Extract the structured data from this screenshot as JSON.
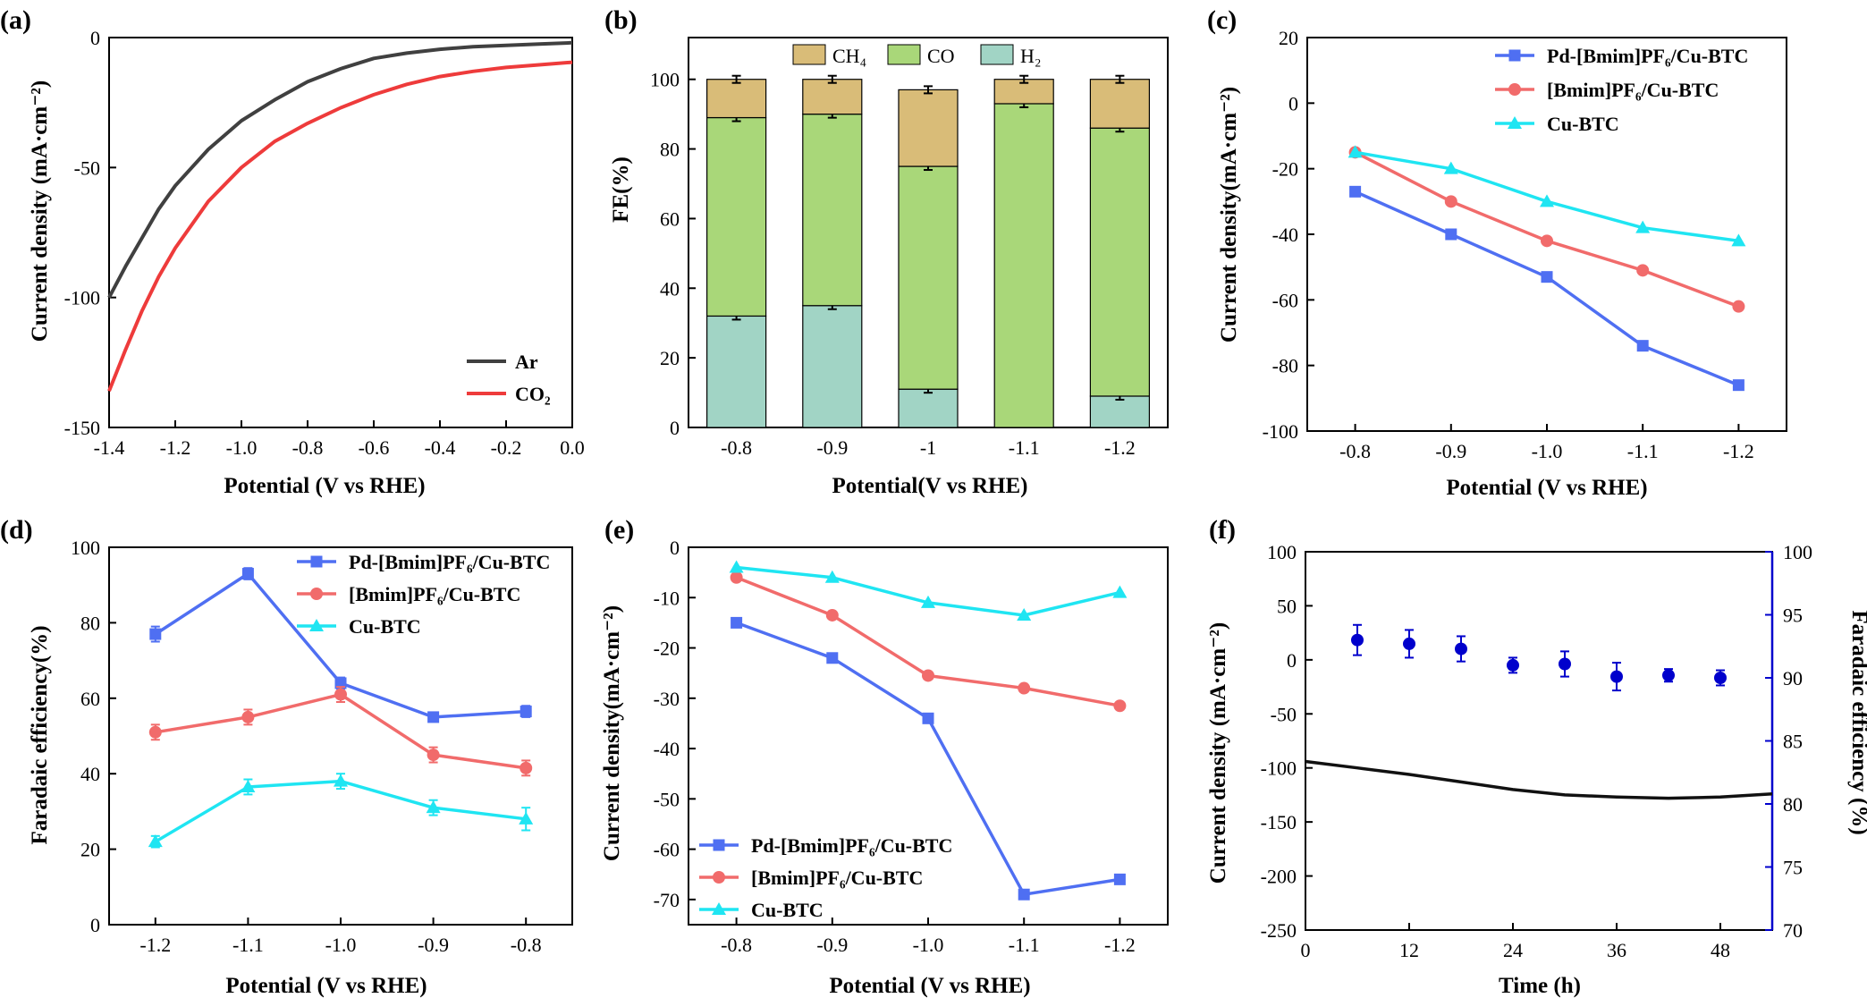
{
  "colors": {
    "axis": "#000000",
    "ar": "#404040",
    "co2": "#ee3b3b",
    "ch4": "#d9bc78",
    "co": "#a9d779",
    "h2": "#a1d4c5",
    "pd": "#4f6ff2",
    "bmim": "#f16b6b",
    "cubtc": "#1fe5f2",
    "trend_red": "#ef3434",
    "fe_blue": "#0000cc"
  },
  "chart_data": [
    {
      "panel": "(a)",
      "type": "line",
      "xlabel": "Potential (V vs RHE)",
      "ylabel": "Current density (mA·cm⁻²)",
      "xlim": [
        -1.4,
        0.0
      ],
      "ylim": [
        -150,
        0
      ],
      "xticks": [
        "-1.4",
        "-1.2",
        "-1.0",
        "-0.8",
        "-0.6",
        "-0.4",
        "-0.2",
        "0.0"
      ],
      "yticks": [
        "0",
        "-50",
        "-100",
        "-150"
      ],
      "legend": {
        "position": "bottom-right",
        "entries": [
          "Ar",
          "CO₂"
        ]
      },
      "series": [
        {
          "name": "Ar",
          "x": [
            -1.4,
            -1.35,
            -1.3,
            -1.25,
            -1.2,
            -1.1,
            -1.0,
            -0.9,
            -0.8,
            -0.7,
            -0.6,
            -0.5,
            -0.4,
            -0.3,
            -0.2,
            -0.1,
            0.0
          ],
          "y": [
            -100,
            -88,
            -77,
            -66,
            -57,
            -43,
            -32,
            -24,
            -17,
            -12,
            -8,
            -6,
            -4.5,
            -3.5,
            -3,
            -2.5,
            -2
          ]
        },
        {
          "name": "CO₂",
          "x": [
            -1.4,
            -1.35,
            -1.3,
            -1.25,
            -1.2,
            -1.1,
            -1.0,
            -0.9,
            -0.8,
            -0.7,
            -0.6,
            -0.5,
            -0.4,
            -0.3,
            -0.2,
            -0.1,
            0.0
          ],
          "y": [
            -136,
            -120,
            -105,
            -92,
            -81,
            -63,
            -50,
            -40,
            -33,
            -27,
            -22,
            -18,
            -15,
            -13,
            -11.5,
            -10.5,
            -9.5
          ]
        }
      ]
    },
    {
      "panel": "(b)",
      "type": "bar",
      "stacked": true,
      "xlabel": "Potential(V vs RHE)",
      "ylabel": "FE(%)",
      "ylim": [
        0,
        112
      ],
      "yticks": [
        "0",
        "20",
        "40",
        "60",
        "80",
        "100"
      ],
      "categories": [
        "-0.8",
        "-0.9",
        "-1",
        "-1.1",
        "-1.2"
      ],
      "legend": {
        "position": "top",
        "entries": [
          "CH₄",
          "CO",
          "H₂"
        ]
      },
      "series": [
        {
          "name": "H₂",
          "values": [
            32,
            35,
            11,
            0,
            9
          ]
        },
        {
          "name": "CO",
          "values": [
            57,
            55,
            64,
            93,
            77
          ]
        },
        {
          "name": "CH₄",
          "values": [
            11,
            10,
            22,
            7,
            14
          ]
        }
      ]
    },
    {
      "panel": "(c)",
      "type": "line",
      "xlabel": "Potential (V vs RHE)",
      "ylabel": "Current density(mA·cm⁻²)",
      "ylim": [
        -100,
        20
      ],
      "categories": [
        "-0.8",
        "-0.9",
        "-1.0",
        "-1.1",
        "-1.2"
      ],
      "yticks": [
        "20",
        "0",
        "-20",
        "-40",
        "-60",
        "-80",
        "-100"
      ],
      "legend": {
        "position": "top-right",
        "entries": [
          "Pd-[Bmim]PF₆/Cu-BTC",
          "[Bmim]PF₆/Cu-BTC",
          "Cu-BTC"
        ]
      },
      "series": [
        {
          "name": "Pd-[Bmim]PF₆/Cu-BTC",
          "values": [
            -27,
            -40,
            -53,
            -74,
            -86
          ]
        },
        {
          "name": "[Bmim]PF₆/Cu-BTC",
          "values": [
            -15,
            -30,
            -42,
            -51,
            -62
          ]
        },
        {
          "name": "Cu-BTC",
          "values": [
            -15,
            -20,
            -30,
            -38,
            -42
          ]
        }
      ]
    },
    {
      "panel": "(d)",
      "type": "line",
      "xlabel": "Potential (V vs RHE)",
      "ylabel": "Faradaic efficiency(%)",
      "ylim": [
        0,
        100
      ],
      "categories": [
        "-1.2",
        "-1.1",
        "-1.0",
        "-0.9",
        "-0.8"
      ],
      "yticks": [
        "0",
        "20",
        "40",
        "60",
        "80",
        "100"
      ],
      "legend": {
        "position": "top-right",
        "entries": [
          "Pd-[Bmim]PF₆/Cu-BTC",
          "[Bmim]PF₆/Cu-BTC",
          "Cu-BTC"
        ]
      },
      "series": [
        {
          "name": "Pd-[Bmim]PF₆/Cu-BTC",
          "values": [
            77,
            93,
            64,
            55,
            56.5
          ],
          "errors": [
            2,
            1.5,
            1.5,
            1,
            1.5
          ]
        },
        {
          "name": "[Bmim]PF₆/Cu-BTC",
          "values": [
            51,
            55,
            61,
            45,
            41.5
          ],
          "errors": [
            2,
            2,
            2,
            2,
            2
          ]
        },
        {
          "name": "Cu-BTC",
          "values": [
            22,
            36.5,
            38,
            31,
            28
          ],
          "errors": [
            1.5,
            2,
            2,
            2,
            3
          ]
        }
      ]
    },
    {
      "panel": "(e)",
      "type": "line",
      "xlabel": "Potential (V vs RHE)",
      "ylabel": "Current density(mA·cm⁻²)",
      "ylim": [
        -75,
        0
      ],
      "categories": [
        "-0.8",
        "-0.9",
        "-1.0",
        "-1.1",
        "-1.2"
      ],
      "yticks": [
        "0",
        "-10",
        "-20",
        "-30",
        "-40",
        "-50",
        "-60",
        "-70"
      ],
      "legend": {
        "position": "bottom-left",
        "entries": [
          "Pd-[Bmim]PF₆/Cu-BTC",
          "[Bmim]PF₆/Cu-BTC",
          "Cu-BTC"
        ]
      },
      "series": [
        {
          "name": "Pd-[Bmim]PF₆/Cu-BTC",
          "values": [
            -15,
            -22,
            -34,
            -69,
            -66
          ]
        },
        {
          "name": "[Bmim]PF₆/Cu-BTC",
          "values": [
            -6,
            -13.5,
            -25.5,
            -28,
            -31.5
          ]
        },
        {
          "name": "Cu-BTC",
          "values": [
            -4,
            -6,
            -11,
            -13.5,
            -9
          ]
        }
      ]
    },
    {
      "panel": "(f)",
      "type": "line",
      "xlabel": "Time (h)",
      "ylabel": "Current density (mA·cm⁻²)",
      "ylabel_right": "Faradaic efficiency (%)",
      "xlim": [
        0,
        54
      ],
      "ylim": [
        -250,
        100
      ],
      "ylim_right": [
        70,
        100
      ],
      "xticks": [
        "0",
        "12",
        "24",
        "36",
        "48"
      ],
      "yticks": [
        "100",
        "50",
        "0",
        "-50",
        "-100",
        "-150",
        "-200",
        "-250"
      ],
      "yticks_right": [
        "100",
        "95",
        "90",
        "85",
        "80",
        "75",
        "70"
      ],
      "current": {
        "x": [
          0,
          6,
          12,
          18,
          24,
          30,
          36,
          42,
          48,
          54
        ],
        "y": [
          -94,
          -100,
          -106,
          -113,
          -120,
          -125,
          -127,
          -128,
          -127,
          -124
        ]
      },
      "faradaic_efficiency": {
        "x": [
          6,
          12,
          18,
          24,
          30,
          36,
          42,
          48
        ],
        "y": [
          93,
          92.7,
          92.3,
          91,
          91.1,
          90.1,
          90.2,
          90
        ],
        "errors": [
          1.2,
          1.1,
          1.0,
          0.6,
          1.0,
          1.1,
          0.5,
          0.6
        ]
      }
    }
  ]
}
